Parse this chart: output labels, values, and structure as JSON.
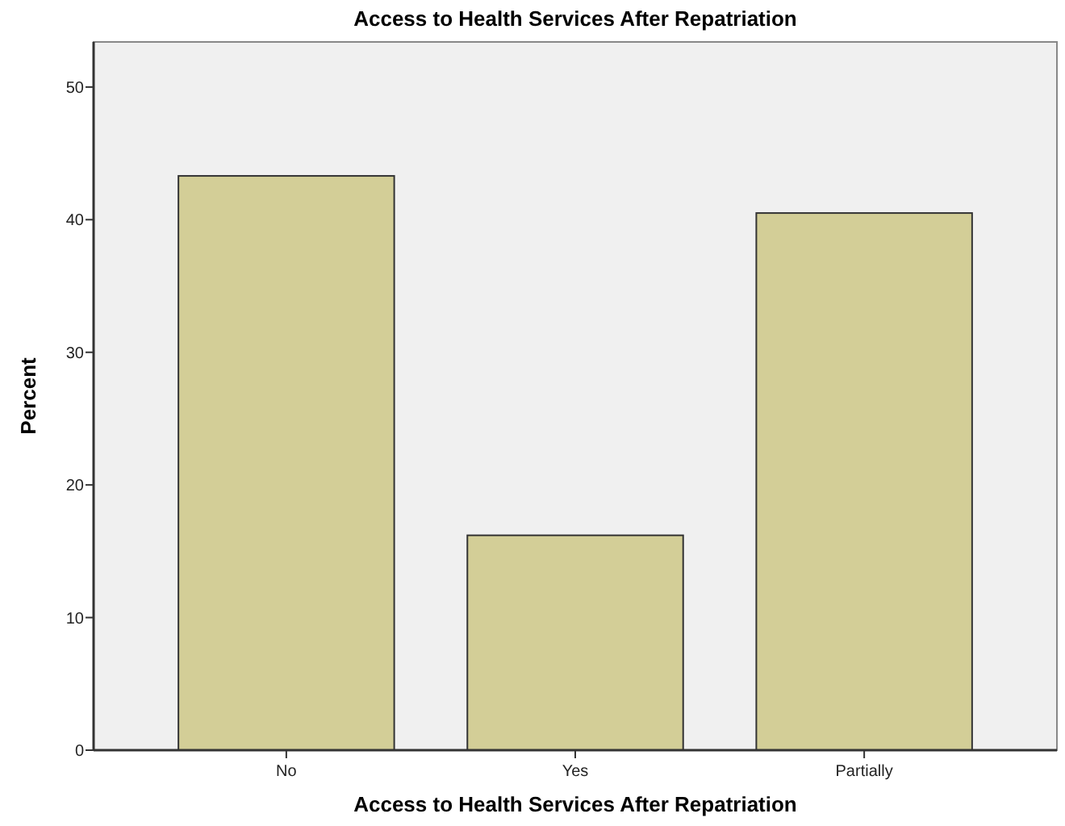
{
  "chart_data": {
    "type": "bar",
    "title": "Access to Health Services After Repatriation",
    "xlabel": "Access to Health Services After Repatriation",
    "ylabel": "Percent",
    "categories": [
      "No",
      "Yes",
      "Partially"
    ],
    "values": [
      43.3,
      16.2,
      40.5
    ],
    "color": "#d3ce97",
    "ylim": [
      0,
      53.4
    ],
    "yticks": [
      0,
      10,
      20,
      30,
      40,
      50
    ],
    "grid": false
  }
}
